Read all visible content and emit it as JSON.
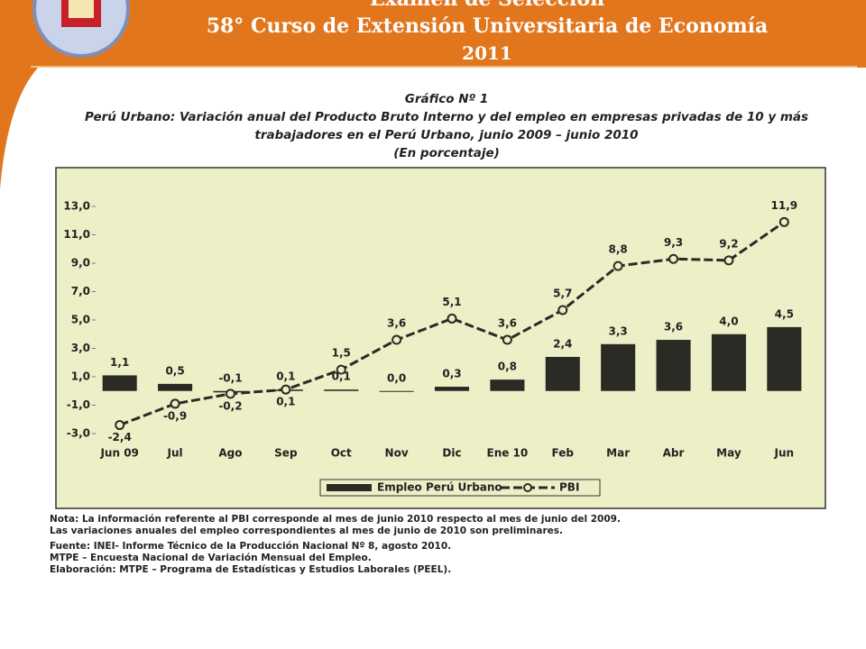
{
  "header": {
    "subtitle": "Examen de Selección",
    "title": "58° Curso de Extensión Universitaria de Economía",
    "year": "2011"
  },
  "chart_data": {
    "type": "bar-line",
    "title": "Gráfico Nº 1",
    "subtitle": "Perú Urbano: Variación anual del Producto Bruto Interno y del empleo en empresas privadas de 10 y más trabajadores en el Perú Urbano, junio 2009 – junio 2010",
    "unit": "(En porcentaje)",
    "categories": [
      "Jun 09",
      "Jul",
      "Ago",
      "Sep",
      "Oct",
      "Nov",
      "Dic",
      "Ene 10",
      "Feb",
      "Mar",
      "Abr",
      "May",
      "Jun"
    ],
    "series": [
      {
        "name": "Empleo Perú Urbano",
        "type": "bar",
        "color": "#2b2b25",
        "values": [
          1.1,
          0.5,
          -0.1,
          0.1,
          0.1,
          0.0,
          0.3,
          0.8,
          2.4,
          3.3,
          3.6,
          4.0,
          4.5
        ],
        "value_labels": [
          "1,1",
          "0,5",
          "-0,1",
          "0,1",
          "0,1",
          "0,0",
          "0,3",
          "0,8",
          "2,4",
          "3,3",
          "3,6",
          "4,0",
          "4,5"
        ]
      },
      {
        "name": "PBI",
        "type": "line",
        "color": "#2b2b25",
        "values": [
          -2.4,
          -0.9,
          -0.2,
          0.1,
          1.5,
          3.6,
          5.1,
          3.6,
          5.7,
          8.8,
          9.3,
          9.2,
          11.9
        ],
        "value_labels": [
          "-2,4",
          "-0,9",
          "-0,2",
          "0,1",
          "1,5",
          "3,6",
          "5,1",
          "3,6",
          "5,7",
          "8,8",
          "9,3",
          "9,2",
          "11,9"
        ]
      }
    ],
    "ylim": [
      -3,
      13
    ],
    "yticks": [
      {
        "value": 13,
        "label": "13,0"
      },
      {
        "value": 11,
        "label": "11,0"
      },
      {
        "value": 9,
        "label": "9,0"
      },
      {
        "value": 7,
        "label": "7,0"
      },
      {
        "value": 5,
        "label": "5,0"
      },
      {
        "value": 3,
        "label": "3,0"
      },
      {
        "value": 1,
        "label": "1,0"
      },
      {
        "value": -1,
        "label": "-1,0"
      },
      {
        "value": -3,
        "label": "-3,0"
      }
    ],
    "legend": "bottom"
  },
  "notes": [
    "Nota: La información referente al PBI corresponde al mes de junio 2010 respecto al mes de junio del 2009.",
    "Las variaciones anuales del empleo correspondientes al mes de junio de 2010 son preliminares.",
    "Fuente: INEI- Informe Técnico de la Producción Nacional Nº 8, agosto 2010.",
    "MTPE – Encuesta Nacional de Variación Mensual del Empleo.",
    "Elaboración: MTPE – Programa de Estadísticas y Estudios Laborales (PEEL)."
  ]
}
